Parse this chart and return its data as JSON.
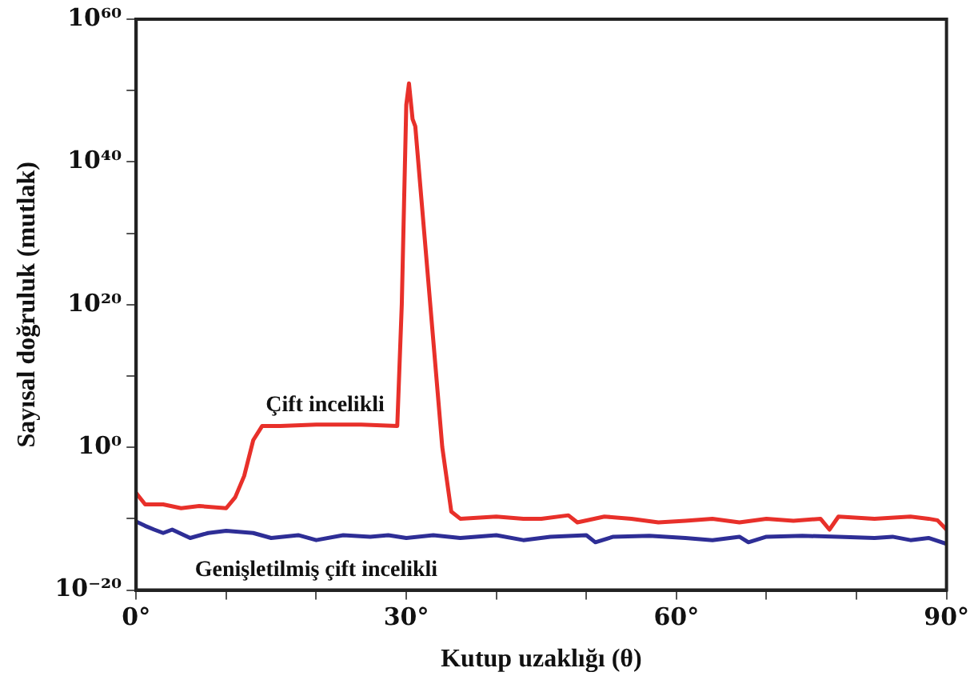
{
  "chart_data": {
    "type": "line",
    "xlabel": "Kutup uzaklığı (θ)",
    "ylabel": "Sayısal doğruluk (mutlak)",
    "log": "y",
    "grid": false,
    "legend": false,
    "marker": "none",
    "line_style": "solid",
    "xlim": [
      0,
      90
    ],
    "xticks": [
      {
        "value": 0,
        "label": "0°"
      },
      {
        "value": 10,
        "label": null
      },
      {
        "value": 20,
        "label": null
      },
      {
        "value": 30,
        "label": "30°"
      },
      {
        "value": 40,
        "label": null
      },
      {
        "value": 50,
        "label": null
      },
      {
        "value": 60,
        "label": "60°"
      },
      {
        "value": 70,
        "label": null
      },
      {
        "value": 80,
        "label": null
      },
      {
        "value": 90,
        "label": "90°"
      }
    ],
    "ylim": [
      1e-20,
      1e+60
    ],
    "yticks": [
      {
        "value": 1e-20,
        "label": "10⁻²⁰"
      },
      {
        "value": 1e-10,
        "label": null
      },
      {
        "value": 1,
        "label": "10⁰"
      },
      {
        "value": 10000000000.0,
        "label": null
      },
      {
        "value": 1e+20,
        "label": "10²⁰"
      },
      {
        "value": 1e+30,
        "label": null
      },
      {
        "value": 1e+40,
        "label": "10⁴⁰"
      },
      {
        "value": 1e+50,
        "label": null
      },
      {
        "value": 1e+60,
        "label": "10⁶⁰"
      }
    ],
    "series": [
      {
        "name": "Çift incelikli",
        "color": "#e8302a",
        "x": [
          0,
          1,
          3,
          5,
          7,
          10,
          11,
          12,
          13,
          14,
          16,
          20,
          25,
          29,
          29.5,
          30,
          30.3,
          30.7,
          31,
          32,
          33,
          34,
          35,
          36,
          40,
          43,
          45,
          48,
          49,
          52,
          55,
          58,
          61,
          64,
          67,
          70,
          73,
          76,
          77,
          78,
          82,
          86,
          88,
          89,
          90
        ],
        "values": [
          4e-07,
          1e-08,
          1e-08,
          3e-09,
          6e-09,
          3e-09,
          1e-07,
          0.0001,
          10,
          1000,
          1000,
          1500,
          1500,
          1000,
          1e+20,
          1e+48,
          1e+51,
          1e+46,
          1e+45,
          1e+30,
          1000000000000000.0,
          1,
          1e-09,
          1e-10,
          2e-10,
          1e-10,
          1e-10,
          3e-10,
          3e-11,
          2e-10,
          1e-10,
          3e-11,
          5e-11,
          1e-10,
          3e-11,
          1e-10,
          5e-11,
          1e-10,
          3e-12,
          2e-10,
          1e-10,
          2e-10,
          1e-10,
          6e-11,
          3e-12
        ]
      },
      {
        "name": "Genişletilmiş çift incelikli",
        "color": "#2e2e96",
        "x": [
          0,
          1,
          2,
          3,
          4,
          6,
          8,
          10,
          13,
          15,
          18,
          20,
          23,
          26,
          28,
          30,
          33,
          36,
          40,
          43,
          46,
          50,
          51,
          53,
          57,
          61,
          64,
          67,
          68,
          70,
          74,
          78,
          82,
          84,
          86,
          88,
          90
        ],
        "values": [
          4e-11,
          1e-11,
          3e-12,
          1e-12,
          3e-12,
          2e-13,
          1e-12,
          2e-12,
          1e-12,
          2e-13,
          5e-13,
          1e-13,
          5e-13,
          3e-13,
          5e-13,
          2e-13,
          5e-13,
          2e-13,
          5e-13,
          1e-13,
          3e-13,
          5e-13,
          5e-14,
          3e-13,
          4e-13,
          2e-13,
          1e-13,
          3e-13,
          5e-14,
          3e-13,
          4e-13,
          3e-13,
          2e-13,
          3e-13,
          1e-13,
          2e-13,
          3e-14
        ]
      }
    ]
  }
}
